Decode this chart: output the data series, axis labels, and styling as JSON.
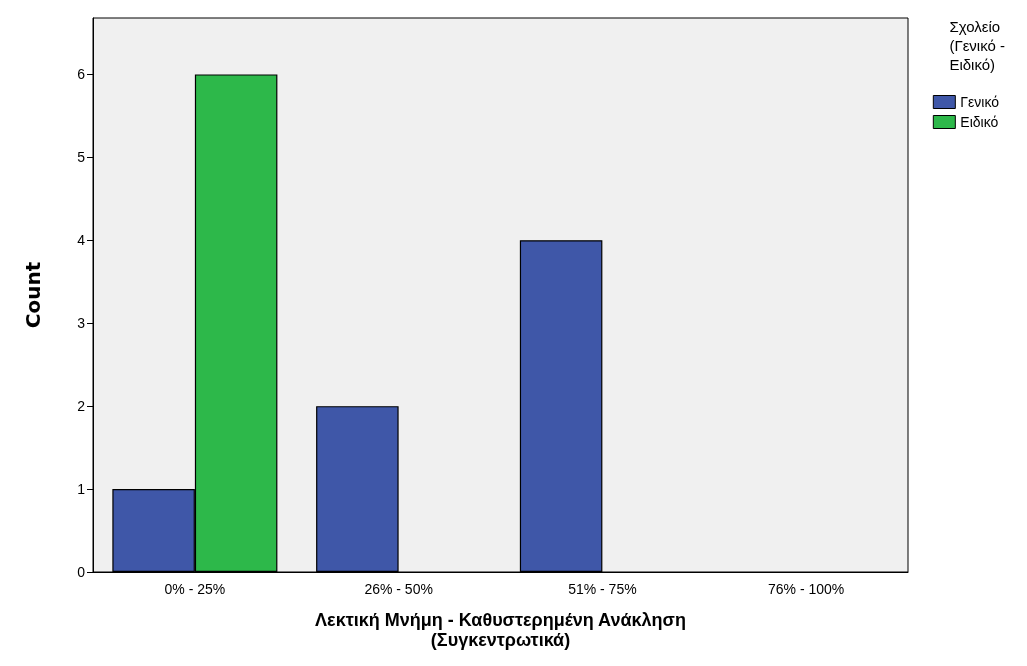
{
  "chart_data": {
    "type": "bar",
    "xlabel": "Λεκτική Μνήμη - Καθυστερημένη Ανάκληση\n(Συγκεντρωτικά)",
    "ylabel": "Count",
    "legend_title": "Σχολείο\n(Γενικό -\nΕιδικό)",
    "categories": [
      "0% - 25%",
      "26% - 50%",
      "51% - 75%",
      "76% - 100%"
    ],
    "series": [
      {
        "name": "Γενικό",
        "color": "#3f57a8",
        "values": [
          1,
          2,
          4,
          0
        ]
      },
      {
        "name": "Ειδικό",
        "color": "#2db84a",
        "values": [
          6,
          0,
          0,
          0
        ]
      }
    ],
    "ylim": [
      0,
      6.68
    ],
    "yticks": [
      0,
      1,
      2,
      3,
      4,
      5,
      6
    ],
    "grid": false,
    "legend": "top right"
  }
}
